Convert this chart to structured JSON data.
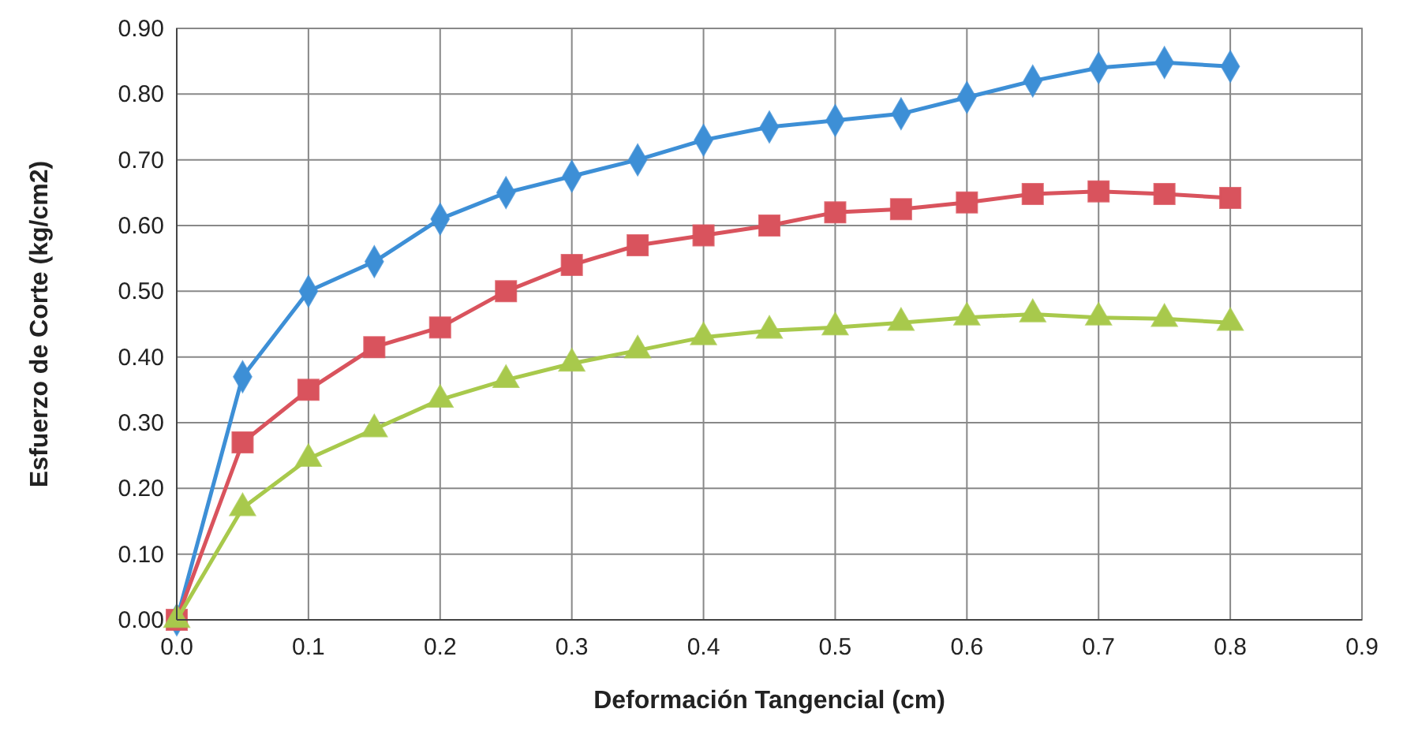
{
  "chart_data": {
    "type": "line",
    "xlabel": "Deformación Tangencial (cm)",
    "ylabel": "Esfuerzo de Corte (kg/cm2)",
    "x": [
      0,
      0.05,
      0.1,
      0.15,
      0.2,
      0.25,
      0.3,
      0.35,
      0.4,
      0.45,
      0.5,
      0.55,
      0.6,
      0.65,
      0.7,
      0.75,
      0.8
    ],
    "series": [
      {
        "color": "#3d8fd6",
        "marker": "diamond",
        "values": [
          0,
          0.37,
          0.5,
          0.545,
          0.61,
          0.65,
          0.675,
          0.7,
          0.73,
          0.75,
          0.76,
          0.77,
          0.795,
          0.82,
          0.84,
          0.848,
          0.842
        ]
      },
      {
        "color": "#d9535d",
        "marker": "square",
        "values": [
          0,
          0.27,
          0.35,
          0.415,
          0.445,
          0.5,
          0.54,
          0.57,
          0.585,
          0.6,
          0.62,
          0.625,
          0.635,
          0.648,
          0.652,
          0.648,
          0.642
        ]
      },
      {
        "color": "#a8c94c",
        "marker": "triangle",
        "values": [
          0,
          0.17,
          0.245,
          0.29,
          0.335,
          0.365,
          0.39,
          0.41,
          0.43,
          0.44,
          0.445,
          0.452,
          0.46,
          0.465,
          0.46,
          0.458,
          0.452
        ]
      }
    ],
    "xlim": [
      0,
      0.9
    ],
    "xticks": [
      {
        "value": 0,
        "label": "0.0"
      },
      0.1,
      0.2,
      0.3,
      0.4,
      0.5,
      0.6,
      0.7,
      0.8,
      0.9
    ],
    "ylim": [
      0,
      0.9
    ],
    "yticks": [
      {
        "value": 0,
        "label": "0.00"
      },
      {
        "value": 0.1,
        "label": "0.10"
      },
      {
        "value": 0.2,
        "label": "0.20"
      },
      {
        "value": 0.3,
        "label": "0.30"
      },
      {
        "value": 0.4,
        "label": "0.40"
      },
      {
        "value": 0.5,
        "label": "0.50"
      },
      {
        "value": 0.6,
        "label": "0.60"
      },
      {
        "value": 0.7,
        "label": "0.70"
      },
      {
        "value": 0.8,
        "label": "0.80"
      },
      {
        "value": 0.9,
        "label": "0.90"
      }
    ],
    "grid": true
  }
}
